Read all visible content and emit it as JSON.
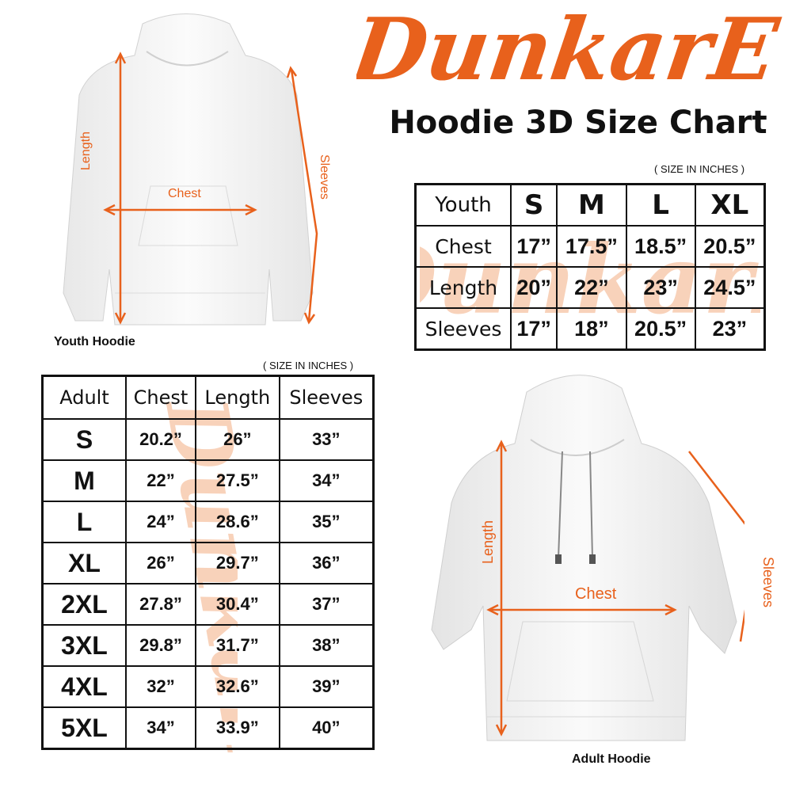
{
  "brand": {
    "logo_text": "DunkarE",
    "color": "#e8611c"
  },
  "title": "Hoodie 3D Size Chart",
  "youth_chart": {
    "units_note": "( SIZE IN INCHES )",
    "corner": "Youth",
    "sizes": [
      "S",
      "M",
      "L",
      "XL"
    ],
    "rows": [
      {
        "label": "Chest",
        "values": [
          "17”",
          "17.5”",
          "18.5”",
          "20.5”"
        ]
      },
      {
        "label": "Length",
        "values": [
          "20”",
          "22”",
          "23”",
          "24.5”"
        ]
      },
      {
        "label": "Sleeves",
        "values": [
          "17”",
          "18”",
          "20.5”",
          "23”"
        ]
      }
    ]
  },
  "adult_chart": {
    "units_note": "( SIZE IN INCHES )",
    "columns": [
      "Adult",
      "Chest",
      "Length",
      "Sleeves"
    ],
    "rows": [
      {
        "size": "S",
        "values": [
          "20.2”",
          "26”",
          "33”"
        ]
      },
      {
        "size": "M",
        "values": [
          "22”",
          "27.5”",
          "34”"
        ]
      },
      {
        "size": "L",
        "values": [
          "24”",
          "28.6”",
          "35”"
        ]
      },
      {
        "size": "XL",
        "values": [
          "26”",
          "29.7”",
          "36”"
        ]
      },
      {
        "size": "2XL",
        "values": [
          "27.8”",
          "30.4”",
          "37”"
        ]
      },
      {
        "size": "3XL",
        "values": [
          "29.8”",
          "31.7”",
          "38”"
        ]
      },
      {
        "size": "4XL",
        "values": [
          "32”",
          "32.6”",
          "39”"
        ]
      },
      {
        "size": "5XL",
        "values": [
          "34”",
          "33.9”",
          "40”"
        ]
      }
    ]
  },
  "youth_hoodie": {
    "caption": "Youth Hoodie",
    "length": "Length",
    "chest": "Chest",
    "sleeves": "Sleeves"
  },
  "adult_hoodie": {
    "caption": "Adult Hoodie",
    "length": "Length",
    "chest": "Chest",
    "sleeves": "Sleeves"
  }
}
